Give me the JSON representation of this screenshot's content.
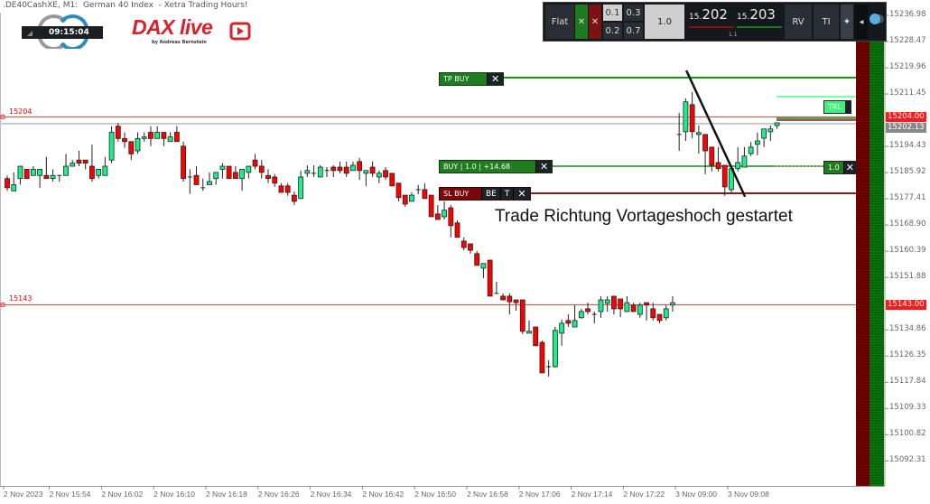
{
  "window": {
    "title": ".DE40CashXE, M1:  German 40 Index  - Xetra Trading Hours!"
  },
  "clock": {
    "time": "09:15:04"
  },
  "logo": {
    "text": "DAX live",
    "subtitle": "by Andreas Bernstein",
    "brand_color": "#d9202a"
  },
  "trade_panel": {
    "flat_label": "Flat",
    "close_buy_icon": "x-icon",
    "close_sell_icon": "x-icon",
    "lot_presets": [
      "0.1",
      "0.3",
      "0.2",
      "0.7"
    ],
    "selected_preset": "0.1",
    "lot_size": "1.0",
    "bid_prefix": "15.",
    "bid_main": "202",
    "ask_prefix": "15.",
    "ask_main": "203",
    "spread": "1.1",
    "rv_label": "RV",
    "ti_label": "TI"
  },
  "trade_lines": {
    "tp_label": "TP BUY",
    "buy_label": "BUY | 1.0 | +14.68",
    "sl_label": "SL BUY",
    "be_label": "BE",
    "t_label": "T",
    "trl_label": "TRL",
    "position_size_label": "1.0"
  },
  "annotation": "Trade Richtung Vortageshoch gestartet",
  "level_labels": {
    "upper": "15204",
    "lower": "15143"
  },
  "price_tags": {
    "upper": "15204.00",
    "bid": "15202.13",
    "lower": "15143.00"
  },
  "colors": {
    "bull": "#19f08a",
    "bear": "#ff0000",
    "tp_line": "#1a8a1a",
    "sl_line": "#8b1a1a",
    "level_line": "#ff4040",
    "trl_line": "#4dff88"
  },
  "chart_data": {
    "type": "candlestick",
    "symbol": ".DE40CashXE",
    "timeframe": "M1",
    "ylim": [
      15088.0,
      15243.0
    ],
    "y_ticks": [
      "15236.98",
      "15228.47",
      "15219.96",
      "15211.45",
      "15194.43",
      "15185.92",
      "15177.41",
      "15168.90",
      "15160.39",
      "15151.88",
      "15134.86",
      "15126.35",
      "15117.84",
      "15109.33",
      "15100.82",
      "15092.31"
    ],
    "x_ticks": [
      {
        "label": "2 Nov 2023",
        "index": 0
      },
      {
        "label": "2 Nov 15:54",
        "index": 7
      },
      {
        "label": "2 Nov 16:02",
        "index": 15
      },
      {
        "label": "2 Nov 16:10",
        "index": 23
      },
      {
        "label": "2 Nov 16:18",
        "index": 31
      },
      {
        "label": "2 Nov 16:26",
        "index": 39
      },
      {
        "label": "2 Nov 16:34",
        "index": 47
      },
      {
        "label": "2 Nov 16:42",
        "index": 55
      },
      {
        "label": "2 Nov 16:50",
        "index": 63
      },
      {
        "label": "2 Nov 16:58",
        "index": 71
      },
      {
        "label": "2 Nov 17:06",
        "index": 79
      },
      {
        "label": "2 Nov 17:14",
        "index": 87
      },
      {
        "label": "2 Nov 17:22",
        "index": 95
      },
      {
        "label": "3 Nov 09:00",
        "index": 103
      },
      {
        "label": "3 Nov 09:08",
        "index": 111
      }
    ],
    "levels": {
      "tp_buy": 15216.8,
      "upper": 15204.0,
      "bid": 15202.13,
      "trl": 15210.6,
      "buy": 15188.0,
      "sl_buy": 15179.2,
      "lower": 15143.0
    },
    "trendline": {
      "from": {
        "index": 104.1,
        "price": 15219.1
      },
      "to": {
        "index": 113.1,
        "price": 15178.1
      }
    },
    "candles_ohlc": [
      [
        15184,
        15185,
        15180,
        15181
      ],
      [
        15180,
        15186,
        15180,
        15182
      ],
      [
        15184,
        15188,
        15182,
        15188
      ],
      [
        15187,
        15187,
        15184,
        15184
      ],
      [
        15185,
        15188,
        15185,
        15187
      ],
      [
        15185,
        15187,
        15181,
        15187
      ],
      [
        15185,
        15191,
        15184,
        15184
      ],
      [
        15184,
        15187,
        15183,
        15185
      ],
      [
        15185,
        15185,
        15183,
        15185
      ],
      [
        15185,
        15192,
        15185,
        15188
      ],
      [
        15188,
        15190,
        15188,
        15189
      ],
      [
        15190,
        15193,
        15188,
        15189
      ],
      [
        15190,
        15190,
        15187,
        15189
      ],
      [
        15188,
        15195,
        15183,
        15184
      ],
      [
        15185,
        15187,
        15184,
        15187
      ],
      [
        15185,
        15191,
        15185,
        15188
      ],
      [
        15190,
        15201,
        15189,
        15199
      ],
      [
        15201,
        15202,
        15196,
        15197
      ],
      [
        15197,
        15199,
        15194,
        15196
      ],
      [
        15196,
        15196,
        15190,
        15192
      ],
      [
        15193,
        15199,
        15192,
        15197
      ],
      [
        15197,
        15199,
        15196,
        15197.5
      ],
      [
        15199,
        15201,
        15194.5,
        15197
      ],
      [
        15197,
        15201,
        15197,
        15199
      ],
      [
        15199,
        15199,
        15194.5,
        15197
      ],
      [
        15196,
        15199,
        15196,
        15197.5
      ],
      [
        15199,
        15201,
        15196,
        15196
      ],
      [
        15194.5,
        15196,
        15183,
        15184
      ],
      [
        15184.5,
        15187,
        15179,
        15184.5
      ],
      [
        15185,
        15188,
        15182,
        15182
      ],
      [
        15181,
        15184,
        15180,
        15181
      ],
      [
        15182,
        15186,
        15182,
        15183
      ],
      [
        15184,
        15186,
        15182,
        15186
      ],
      [
        15187,
        15189,
        15184,
        15188
      ],
      [
        15188,
        15188,
        15184,
        15184
      ],
      [
        15186,
        15188,
        15184,
        15184
      ],
      [
        15184,
        15187,
        15180,
        15187
      ],
      [
        15186,
        15188,
        15184,
        15188
      ],
      [
        15190,
        15192,
        15187,
        15188
      ],
      [
        15188,
        15190,
        15184,
        15186
      ],
      [
        15185,
        15187,
        15182.5,
        15184
      ],
      [
        15184.5,
        15185.4,
        15181.3,
        15182.5
      ],
      [
        15181.6,
        15182.5,
        15179.5,
        15179.5
      ],
      [
        15181.6,
        15182.5,
        15178.4,
        15179.5
      ],
      [
        15178.6,
        15179.8,
        15175.4,
        15176.6
      ],
      [
        15177.5,
        15186.6,
        15177.5,
        15184.5
      ],
      [
        15185.7,
        15188.3,
        15184.5,
        15186.6
      ],
      [
        15185.7,
        15188.3,
        15184.5,
        15185.7
      ],
      [
        15184.5,
        15188.3,
        15184.5,
        15187.7
      ],
      [
        15186.6,
        15187.7,
        15184.5,
        15186.6
      ],
      [
        15187.7,
        15188.3,
        15184.5,
        15186.6
      ],
      [
        15187.7,
        15189.5,
        15185.7,
        15186.6
      ],
      [
        15187.7,
        15189.5,
        15184.5,
        15185.7
      ],
      [
        15186.6,
        15189.5,
        15186.6,
        15188.3
      ],
      [
        15189.5,
        15190.7,
        15183.6,
        15186.6
      ],
      [
        15185.7,
        15186.6,
        15181.6,
        15186.6
      ],
      [
        15187.7,
        15189.5,
        15184.5,
        15185.7
      ],
      [
        15184.5,
        15186.6,
        15182.5,
        15185.7
      ],
      [
        15186.6,
        15187.7,
        15183.6,
        15184.5
      ],
      [
        15185.7,
        15185.7,
        15181.6,
        15181.6
      ],
      [
        15182.5,
        15182.5,
        15176.6,
        15177.8
      ],
      [
        15178.6,
        15178.6,
        15174.8,
        15175.7
      ],
      [
        15176.6,
        15179.5,
        15176.6,
        15178.6
      ],
      [
        15180.4,
        15181.9,
        15178.9,
        15180.4
      ],
      [
        15180.4,
        15182.5,
        15177.5,
        15177.5
      ],
      [
        15178.6,
        15178.6,
        15171.6,
        15171.6
      ],
      [
        15172.5,
        15175.4,
        15170.7,
        15170.7
      ],
      [
        15171.6,
        15176.6,
        15170.7,
        15173.7
      ],
      [
        15174.5,
        15175.4,
        15164.9,
        15168.7
      ],
      [
        15169.6,
        15170.4,
        15164.9,
        15164.9
      ],
      [
        15163.7,
        15164.9,
        15160.7,
        15161.6
      ],
      [
        15162.8,
        15162.8,
        15159.6,
        15160.7
      ],
      [
        15159.6,
        15160.5,
        15155.8,
        15155.8
      ],
      [
        15154.9,
        15156.4,
        15151.7,
        15156.4
      ],
      [
        15157.5,
        15157.5,
        15145.8,
        15145.8
      ],
      [
        15146.7,
        15150.5,
        15146.7,
        15146.7
      ],
      [
        15145.8,
        15146.7,
        15144.6,
        15144.6
      ],
      [
        15145.8,
        15146.7,
        15139.9,
        15144.0
      ],
      [
        15144.6,
        15144.6,
        15141.1,
        15143.7
      ],
      [
        15144.6,
        15144.6,
        15133.5,
        15134.4
      ],
      [
        15133.8,
        15137.9,
        15133.8,
        15134.4
      ],
      [
        15135.8,
        15135.8,
        15129.7,
        15129.7
      ],
      [
        15130.8,
        15131.4,
        15120.9,
        15120.9
      ],
      [
        15122.9,
        15125.0,
        15119.7,
        15122.9
      ],
      [
        15122.9,
        15135.8,
        15122.6,
        15134.7
      ],
      [
        15133.8,
        15138.2,
        15129.7,
        15137.0
      ],
      [
        15137.9,
        15139.9,
        15135.8,
        15137.0
      ],
      [
        15135.8,
        15142.9,
        15135.8,
        15137.9
      ],
      [
        15138.8,
        15141.7,
        15138.5,
        15140.8
      ],
      [
        15141.7,
        15143.7,
        15139.9,
        15140.8
      ],
      [
        15139.9,
        15140.8,
        15137.0,
        15139.9
      ],
      [
        15140.8,
        15145.8,
        15138.8,
        15144.6
      ],
      [
        15143.5,
        15145.8,
        15140.8,
        15144.6
      ],
      [
        15145.8,
        15145.8,
        15139.9,
        15141.7
      ],
      [
        15144.9,
        15144.9,
        15139.0,
        15141.7
      ],
      [
        15140.8,
        15145.8,
        15140.8,
        15143.7
      ],
      [
        15142.9,
        15143.7,
        15140.8,
        15140.8
      ],
      [
        15139.9,
        15143.7,
        15138.8,
        15142.9
      ],
      [
        15143.7,
        15143.7,
        15137.9,
        15142.9
      ],
      [
        15141.7,
        15143.7,
        15137.9,
        15138.8
      ],
      [
        15139.9,
        15139.9,
        15137.0,
        15137.9
      ],
      [
        15138.8,
        15142.9,
        15137.9,
        15141.7
      ],
      [
        15142.9,
        15145.8,
        15140.8,
        15143.7
      ],
      [
        15198.3,
        15205.3,
        15193.0,
        15198.3
      ],
      [
        15199.2,
        15210.0,
        15196.2,
        15208.9
      ],
      [
        15208.0,
        15212.1,
        15197.1,
        15199.2
      ],
      [
        15198.3,
        15201.2,
        15192.1,
        15198.9
      ],
      [
        15198.3,
        15198.3,
        15185.4,
        15193.0
      ],
      [
        15194.2,
        15194.2,
        15186.3,
        15188.3
      ],
      [
        15189.2,
        15194.2,
        15186.3,
        15187.2
      ],
      [
        15188.3,
        15188.3,
        15178.4,
        15181.3
      ],
      [
        15180.4,
        15188.3,
        15179.5,
        15187.2
      ],
      [
        15187.2,
        15194.2,
        15186.3,
        15189.2
      ],
      [
        15187.7,
        15194.2,
        15187.7,
        15191.3
      ],
      [
        15192.1,
        15195.9,
        15191.3,
        15194.2
      ],
      [
        15195.1,
        15198.9,
        15191.6,
        15196.2
      ],
      [
        15197.1,
        15200.1,
        15194.2,
        15200.1
      ],
      [
        15199.2,
        15201.2,
        15196.2,
        15200.1
      ],
      [
        15201.2,
        15202.1,
        15200.1,
        15202.1
      ]
    ]
  }
}
